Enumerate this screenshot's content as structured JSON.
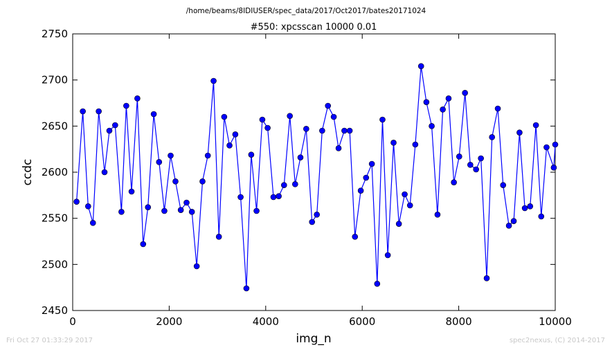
{
  "suptitle": "/home/beams/8IDIUSER/spec_data/2017/Oct2017/bates20171024",
  "footer_left": "Fri Oct 27 01:33:29 2017",
  "footer_right": "spec2nexus, (C) 2014-2017",
  "chart_data": {
    "type": "line",
    "title": "#550: xpcsscan 10000 0.01",
    "xlabel": "img_n",
    "ylabel": "ccdc",
    "xlim": [
      0,
      10000
    ],
    "ylim": [
      2450,
      2750
    ],
    "xticks": [
      0,
      2000,
      4000,
      6000,
      8000,
      10000
    ],
    "yticks": [
      2450,
      2500,
      2550,
      2600,
      2650,
      2700,
      2750
    ],
    "grid": false,
    "line_color": "#0000ff",
    "marker": "circle",
    "series": [
      {
        "x": [
          80,
          210,
          320,
          420,
          540,
          660,
          760,
          880,
          1010,
          1110,
          1220,
          1340,
          1460,
          1560,
          1680,
          1790,
          1900,
          2030,
          2130,
          2240,
          2360,
          2470,
          2570,
          2690,
          2800,
          2920,
          3030,
          3140,
          3250,
          3370,
          3480,
          3600,
          3700,
          3810,
          3930,
          4040,
          4160,
          4270,
          4380,
          4500,
          4610,
          4720,
          4840,
          4960,
          5060,
          5170,
          5290,
          5410,
          5510,
          5630,
          5740,
          5850,
          5970,
          6080,
          6200,
          6310,
          6420,
          6530,
          6650,
          6760,
          6880,
          6990,
          7100,
          7220,
          7330,
          7440,
          7560,
          7670,
          7790,
          7900,
          8010,
          8130,
          8240,
          8360,
          8460,
          8580,
          8690,
          8810,
          8920,
          9040,
          9140,
          9260,
          9370,
          9480,
          9600,
          9710,
          9820,
          9970,
          10000
        ],
        "y": [
          2568,
          2666,
          2563,
          2545,
          2666,
          2600,
          2645,
          2651,
          2557,
          2672,
          2579,
          2680,
          2522,
          2562,
          2663,
          2611,
          2558,
          2618,
          2590,
          2559,
          2567,
          2557,
          2498,
          2590,
          2618,
          2699,
          2530,
          2660,
          2629,
          2641,
          2573,
          2474,
          2619,
          2558,
          2657,
          2648,
          2573,
          2574,
          2586,
          2661,
          2587,
          2616,
          2647,
          2546,
          2554,
          2645,
          2672,
          2660,
          2626,
          2645,
          2645,
          2530,
          2580,
          2594,
          2609,
          2479,
          2657,
          2510,
          2632,
          2544,
          2576,
          2564,
          2630,
          2715,
          2676,
          2650,
          2554,
          2668,
          2680,
          2589,
          2617,
          2686,
          2608,
          2603,
          2615,
          2485,
          2638,
          2669,
          2586,
          2542,
          2547,
          2643,
          2561,
          2563,
          2651,
          2552,
          2627,
          2605,
          2630
        ]
      }
    ]
  }
}
